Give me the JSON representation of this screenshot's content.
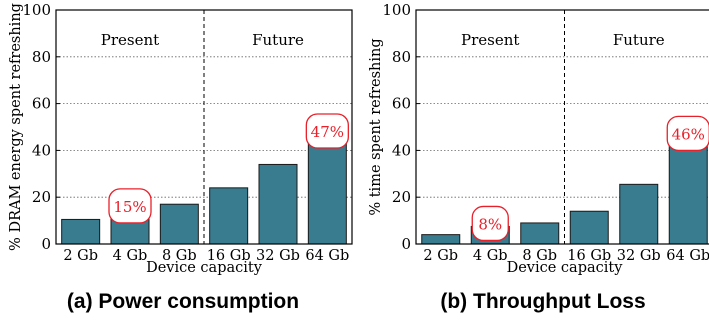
{
  "chart_data": [
    {
      "type": "bar",
      "caption": "(a) Power consumption",
      "categories": [
        "2 Gb",
        "4 Gb",
        "8 Gb",
        "16 Gb",
        "32 Gb",
        "64 Gb"
      ],
      "values": [
        10.5,
        15,
        17,
        24,
        34,
        47
      ],
      "ylabel": "% DRAM energy spent refreshing",
      "xlabel": "Device capacity",
      "ylim": [
        0,
        100
      ],
      "yticks": [
        "0",
        "20",
        "40",
        "60",
        "80",
        "100"
      ],
      "grid": true,
      "regions": [
        {
          "label": "Present",
          "from": 0,
          "to": 2
        },
        {
          "label": "Future",
          "from": 3,
          "to": 5
        }
      ],
      "callouts": [
        {
          "category_index": 1,
          "text": "15%"
        },
        {
          "category_index": 5,
          "text": "47%"
        }
      ],
      "bar_color": "#397b8f",
      "callout_color": "#e8202a"
    },
    {
      "type": "bar",
      "caption": "(b) Throughput Loss",
      "categories": [
        "2 Gb",
        "4 Gb",
        "8 Gb",
        "16 Gb",
        "32 Gb",
        "64 Gb"
      ],
      "values": [
        4,
        7.5,
        9,
        14,
        25.5,
        46
      ],
      "ylabel": "% time spent refreshing",
      "xlabel": "Device capacity",
      "ylim": [
        0,
        100
      ],
      "yticks": [
        "0",
        "20",
        "40",
        "60",
        "80",
        "100"
      ],
      "grid": true,
      "regions": [
        {
          "label": "Present",
          "from": 0,
          "to": 2
        },
        {
          "label": "Future",
          "from": 3,
          "to": 5
        }
      ],
      "callouts": [
        {
          "category_index": 1,
          "text": "8%"
        },
        {
          "category_index": 5,
          "text": "46%"
        }
      ],
      "bar_color": "#397b8f",
      "callout_color": "#e8202a"
    }
  ]
}
